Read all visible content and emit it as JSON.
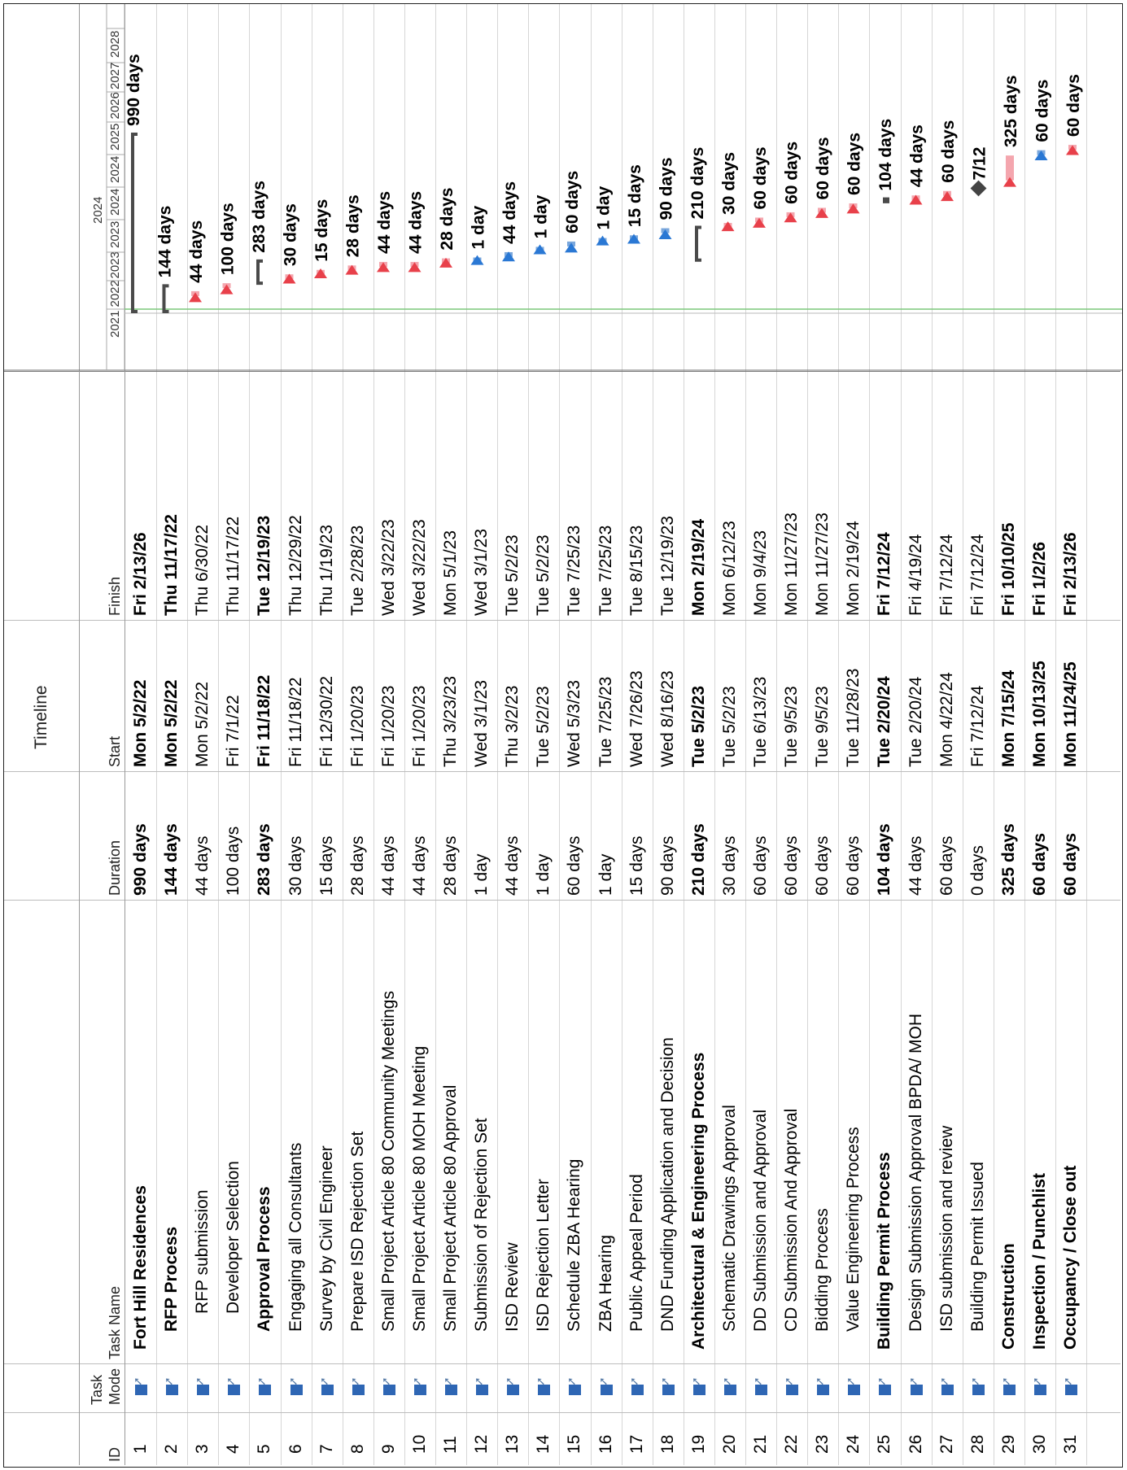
{
  "timeline_label": "Timeline",
  "headers": {
    "id": "ID",
    "mode_line1": "Task",
    "mode_line2": "Mode",
    "name": "Task Name",
    "duration": "Duration",
    "start": "Start",
    "finish": "Finish"
  },
  "years": {
    "top": "2024",
    "bottom": [
      "2021",
      "2022",
      "2023",
      "2023",
      "2024",
      "2024",
      "2025",
      "2026",
      "2027",
      "2028"
    ]
  },
  "colors": {
    "task_bar": "#f4a6ae",
    "task_arrow": "#e8404a",
    "split_bar": "#7aa7dc",
    "split_arrow": "#2a78d4",
    "summary": "#4a4a4a",
    "mode_icon": "#2e66b4",
    "milestone": "#444444",
    "status_line": "#7cc77a"
  },
  "tasks": [
    {
      "id": "1",
      "name": "Fort Hill Residences",
      "duration": "990 days",
      "start": "Mon 5/2/22",
      "finish": "Fri 2/13/26",
      "bold": true,
      "indent": 0,
      "bar_label": "990 days",
      "kind": "summary",
      "s": 0.0,
      "e": 1.0
    },
    {
      "id": "2",
      "name": "RFP Process",
      "duration": "144 days",
      "start": "Mon 5/2/22",
      "finish": "Thu 11/17/22",
      "bold": true,
      "indent": 1,
      "bar_label": "144 days",
      "kind": "summary",
      "s": 0.0,
      "e": 0.145
    },
    {
      "id": "3",
      "name": "RFP submission",
      "duration": "44 days",
      "start": "Mon 5/2/22",
      "finish": "Thu 6/30/22",
      "bold": false,
      "indent": 2,
      "bar_label": "44 days",
      "kind": "task",
      "s": 0.09,
      "e": 0.115
    },
    {
      "id": "4",
      "name": "Developer Selection",
      "duration": "100 days",
      "start": "Fri 7/1/22",
      "finish": "Thu 11/17/22",
      "bold": false,
      "indent": 2,
      "bar_label": "100 days",
      "kind": "task",
      "s": 0.135,
      "e": 0.16
    },
    {
      "id": "5",
      "name": "Approval Process",
      "duration": "283 days",
      "start": "Fri 11/18/22",
      "finish": "Tue 12/19/23",
      "bold": true,
      "indent": 1,
      "bar_label": "283 days",
      "kind": "summary",
      "s": 0.16,
      "e": 0.285
    },
    {
      "id": "6",
      "name": "Engaging all Consultants",
      "duration": "30 days",
      "start": "Fri 11/18/22",
      "finish": "Thu 12/29/22",
      "bold": false,
      "indent": 1,
      "bar_label": "30 days",
      "kind": "task",
      "s": 0.195,
      "e": 0.21
    },
    {
      "id": "7",
      "name": "Survey by Civil Engineer",
      "duration": "15 days",
      "start": "Fri 12/30/22",
      "finish": "Thu 1/19/23",
      "bold": false,
      "indent": 1,
      "bar_label": "15 days",
      "kind": "task",
      "s": 0.225,
      "e": 0.235
    },
    {
      "id": "8",
      "name": "Prepare ISD Rejection Set",
      "duration": "28 days",
      "start": "Fri 1/20/23",
      "finish": "Tue 2/28/23",
      "bold": false,
      "indent": 1,
      "bar_label": "28 days",
      "kind": "task",
      "s": 0.245,
      "e": 0.26
    },
    {
      "id": "9",
      "name": "Small Project Article 80 Community Meetings",
      "duration": "44 days",
      "start": "Fri 1/20/23",
      "finish": "Wed 3/22/23",
      "bold": false,
      "indent": 1,
      "bar_label": "44 days",
      "kind": "task",
      "s": 0.26,
      "e": 0.28
    },
    {
      "id": "10",
      "name": "Small Project Article 80 MOH Meeting",
      "duration": "44 days",
      "start": "Fri 1/20/23",
      "finish": "Wed 3/22/23",
      "bold": false,
      "indent": 1,
      "bar_label": "44 days",
      "kind": "task",
      "s": 0.26,
      "e": 0.28
    },
    {
      "id": "11",
      "name": "Small Project Article 80 Approval",
      "duration": "28 days",
      "start": "Thu 3/23/23",
      "finish": "Mon 5/1/23",
      "bold": false,
      "indent": 1,
      "bar_label": "28 days",
      "kind": "task",
      "s": 0.285,
      "e": 0.3
    },
    {
      "id": "12",
      "name": "Submission of Rejection Set",
      "duration": "1 day",
      "start": "Wed 3/1/23",
      "finish": "Wed 3/1/23",
      "bold": false,
      "indent": 1,
      "bar_label": "1 day",
      "kind": "split",
      "s": 0.3,
      "e": 0.305
    },
    {
      "id": "13",
      "name": "ISD Review",
      "duration": "44 days",
      "start": "Thu 3/2/23",
      "finish": "Tue 5/2/23",
      "bold": false,
      "indent": 1,
      "bar_label": "44 days",
      "kind": "split",
      "s": 0.32,
      "e": 0.335
    },
    {
      "id": "14",
      "name": "ISD Rejection Letter",
      "duration": "1 day",
      "start": "Tue 5/2/23",
      "finish": "Tue 5/2/23",
      "bold": false,
      "indent": 1,
      "bar_label": "1 day",
      "kind": "split",
      "s": 0.36,
      "e": 0.365
    },
    {
      "id": "15",
      "name": "Schedule ZBA Hearing",
      "duration": "60 days",
      "start": "Wed 5/3/23",
      "finish": "Tue 7/25/23",
      "bold": false,
      "indent": 1,
      "bar_label": "60 days",
      "kind": "split",
      "s": 0.37,
      "e": 0.395
    },
    {
      "id": "16",
      "name": "ZBA Hearing",
      "duration": "1 day",
      "start": "Tue 7/25/23",
      "finish": "Tue 7/25/23",
      "bold": false,
      "indent": 1,
      "bar_label": "1 day",
      "kind": "split",
      "s": 0.41,
      "e": 0.415
    },
    {
      "id": "17",
      "name": "Public Appeal Period",
      "duration": "15 days",
      "start": "Wed 7/26/23",
      "finish": "Tue 8/15/23",
      "bold": false,
      "indent": 1,
      "bar_label": "15 days",
      "kind": "split",
      "s": 0.42,
      "e": 0.43
    },
    {
      "id": "18",
      "name": "DND Funding Application and Decision",
      "duration": "90 days",
      "start": "Wed 8/16/23",
      "finish": "Tue 12/19/23",
      "bold": false,
      "indent": 1,
      "bar_label": "90 days",
      "kind": "split",
      "s": 0.445,
      "e": 0.47
    },
    {
      "id": "19",
      "name": "Architectural & Engineering Process",
      "duration": "210 days",
      "start": "Tue 5/2/23",
      "finish": "Mon 2/19/24",
      "bold": true,
      "indent": 0,
      "bar_label": "210 days",
      "kind": "summary",
      "s": 0.29,
      "e": 0.475
    },
    {
      "id": "20",
      "name": "Schematic Drawings Approval",
      "duration": "30 days",
      "start": "Tue 5/2/23",
      "finish": "Mon 6/12/23",
      "bold": false,
      "indent": 1,
      "bar_label": "30 days",
      "kind": "task",
      "s": 0.49,
      "e": 0.5
    },
    {
      "id": "21",
      "name": "DD Submission and Approval",
      "duration": "60 days",
      "start": "Tue 6/13/23",
      "finish": "Mon 9/4/23",
      "bold": false,
      "indent": 1,
      "bar_label": "60 days",
      "kind": "task",
      "s": 0.51,
      "e": 0.53
    },
    {
      "id": "22",
      "name": "CD Submission And Approval",
      "duration": "60 days",
      "start": "Tue 9/5/23",
      "finish": "Mon 11/27/23",
      "bold": false,
      "indent": 1,
      "bar_label": "60 days",
      "kind": "task",
      "s": 0.54,
      "e": 0.56
    },
    {
      "id": "23",
      "name": "Bidding Process",
      "duration": "60 days",
      "start": "Tue 9/5/23",
      "finish": "Mon 11/27/23",
      "bold": false,
      "indent": 1,
      "bar_label": "60 days",
      "kind": "task",
      "s": 0.565,
      "e": 0.585
    },
    {
      "id": "24",
      "name": "Value Engineering Process",
      "duration": "60 days",
      "start": "Tue 11/28/23",
      "finish": "Mon 2/19/24",
      "bold": false,
      "indent": 1,
      "bar_label": "60 days",
      "kind": "task",
      "s": 0.59,
      "e": 0.61
    },
    {
      "id": "25",
      "name": "Building Permit Process",
      "duration": "104 days",
      "start": "Tue 2/20/24",
      "finish": "Fri 7/12/24",
      "bold": true,
      "indent": 0,
      "bar_label": "104 days",
      "kind": "summary",
      "s": 0.62,
      "e": 0.635
    },
    {
      "id": "26",
      "name": "Design Submission Approval BPDA/ MOH",
      "duration": "44 days",
      "start": "Tue 2/20/24",
      "finish": "Fri 4/19/24",
      "bold": false,
      "indent": 1,
      "bar_label": "44 days",
      "kind": "task",
      "s": 0.64,
      "e": 0.655
    },
    {
      "id": "27",
      "name": "ISD submission and review",
      "duration": "60 days",
      "start": "Mon 4/22/24",
      "finish": "Fri 7/12/24",
      "bold": false,
      "indent": 1,
      "bar_label": "60 days",
      "kind": "task",
      "s": 0.66,
      "e": 0.68
    },
    {
      "id": "28",
      "name": "Building Permit Issued",
      "duration": "0 days",
      "start": "Fri 7/12/24",
      "finish": "Fri 7/12/24",
      "bold": false,
      "indent": 1,
      "bar_label": "7/12",
      "kind": "milestone",
      "s": 0.695,
      "e": 0.695
    },
    {
      "id": "29",
      "name": "Construction",
      "duration": "325 days",
      "start": "Mon 7/15/24",
      "finish": "Fri 10/10/25",
      "bold": true,
      "indent": 0,
      "bar_label": "325 days",
      "kind": "task",
      "s": 0.74,
      "e": 0.88
    },
    {
      "id": "30",
      "name": "Inspection / Punchlist",
      "duration": "60 days",
      "start": "Mon 10/13/25",
      "finish": "Fri 1/2/26",
      "bold": true,
      "indent": 0,
      "bar_label": "60 days",
      "kind": "split",
      "s": 0.89,
      "e": 0.91
    },
    {
      "id": "31",
      "name": "Occupancy / Close out",
      "duration": "60 days",
      "start": "Mon 11/24/25",
      "finish": "Fri 2/13/26",
      "bold": true,
      "indent": 0,
      "bar_label": "60 days",
      "kind": "task",
      "s": 0.92,
      "e": 0.94
    }
  ]
}
